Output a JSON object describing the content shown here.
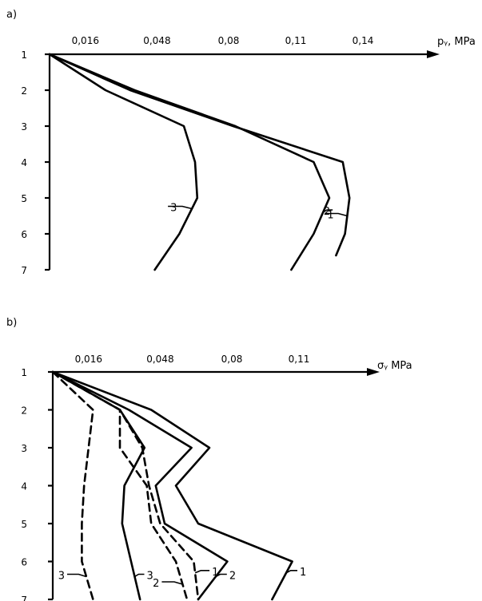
{
  "chart_data": [
    {
      "type": "line",
      "panel_label": "a)",
      "axis_label": "pᵧ, MPa",
      "x_ticks": [
        "0,016",
        "0,048",
        "0,08",
        "0,11",
        "0,14"
      ],
      "x_tick_values": [
        0.016,
        0.048,
        0.08,
        0.11,
        0.14
      ],
      "y_ticks": [
        "1",
        "2",
        "3",
        "4",
        "5",
        "6",
        "7"
      ],
      "y_tick_values": [
        1,
        2,
        3,
        4,
        5,
        6,
        7
      ],
      "xlim": [
        0,
        0.165
      ],
      "ylim": [
        1,
        7
      ],
      "orientation": "x on top, y downward",
      "series": [
        {
          "name": "1",
          "style": "solid",
          "label_at": 5.5,
          "x": [
            0,
            0.036,
            0.082,
            0.131,
            0.134,
            0.132,
            0.128
          ],
          "y": [
            1,
            2,
            3,
            4,
            5,
            6,
            6.6
          ]
        },
        {
          "name": "2",
          "style": "solid",
          "label_at": 5.4,
          "x": [
            0,
            0.038,
            0.083,
            0.118,
            0.125,
            0.118,
            0.108
          ],
          "y": [
            1,
            2,
            3,
            4,
            5,
            6,
            7
          ]
        },
        {
          "name": "3",
          "style": "solid",
          "label_at": 5.3,
          "x": [
            0,
            0.025,
            0.06,
            0.065,
            0.066,
            0.058,
            0.047
          ],
          "y": [
            1,
            2,
            3,
            4,
            5,
            6,
            7
          ]
        }
      ]
    },
    {
      "type": "line",
      "panel_label": "b)",
      "axis_label": "σᵧ MPa",
      "x_ticks": [
        "0,016",
        "0,048",
        "0,08",
        "0,11"
      ],
      "x_tick_values": [
        0.016,
        0.048,
        0.08,
        0.11
      ],
      "y_ticks": [
        "1",
        "2",
        "3",
        "4",
        "5",
        "6",
        "7"
      ],
      "y_tick_values": [
        1,
        2,
        3,
        4,
        5,
        6,
        7
      ],
      "xlim": [
        0,
        0.145
      ],
      "ylim": [
        1,
        7
      ],
      "orientation": "x on top, y downward",
      "series": [
        {
          "name": "1",
          "style": "solid",
          "label_at": 6.3,
          "x": [
            0,
            0.044,
            0.07,
            0.055,
            0.065,
            0.107,
            0.098
          ],
          "y": [
            1,
            2,
            3,
            4,
            5,
            6,
            7
          ]
        },
        {
          "name": "2",
          "style": "solid",
          "label_at": 6.4,
          "x": [
            0,
            0.034,
            0.062,
            0.046,
            0.05,
            0.078,
            0.065
          ],
          "y": [
            1,
            2,
            3,
            4,
            5,
            6,
            7
          ]
        },
        {
          "name": "3",
          "style": "solid",
          "label_at": 6.4,
          "x": [
            0,
            0.03,
            0.041,
            0.032,
            0.031,
            0.035,
            0.039
          ],
          "y": [
            1,
            2,
            3,
            4,
            5,
            6,
            7
          ]
        },
        {
          "name": "1",
          "style": "dashed",
          "label_at": 6.3,
          "x": [
            0,
            0.03,
            0.04,
            0.043,
            0.048,
            0.063,
            0.065
          ],
          "y": [
            1,
            2,
            3,
            4,
            5,
            6,
            7
          ]
        },
        {
          "name": "2",
          "style": "dashed",
          "label_at": 6.6,
          "x": [
            0,
            0.03,
            0.03,
            0.042,
            0.044,
            0.055,
            0.06
          ],
          "y": [
            1,
            2,
            3,
            4,
            5,
            6,
            7
          ]
        },
        {
          "name": "3",
          "style": "dashed",
          "label_at": 6.4,
          "x": [
            0,
            0.018,
            0.016,
            0.014,
            0.013,
            0.013,
            0.018
          ],
          "y": [
            1,
            2,
            3,
            4,
            5,
            6,
            7
          ]
        }
      ]
    }
  ]
}
